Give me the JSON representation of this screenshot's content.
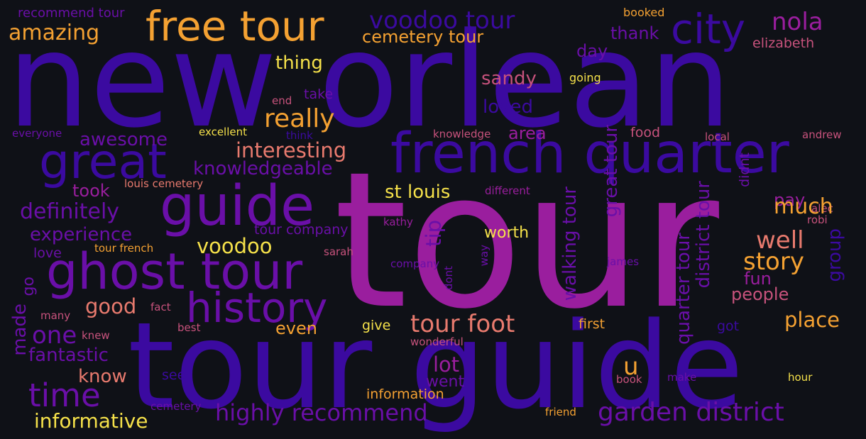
{
  "colors": {
    "background": "#0f1117",
    "indigo": "#3b0aa0",
    "purple": "#6a0fa8",
    "magenta": "#9a1e9e",
    "orange": "#f4a132",
    "pink": "#e87a6e",
    "rose": "#c7527c",
    "yellow": "#f5e14a"
  },
  "words": [
    {
      "text": "new orlean",
      "color": "#3b0aa0"
    },
    {
      "text": "tour",
      "color": "#9a1e9e"
    },
    {
      "text": "tour guide",
      "color": "#3b0aa0"
    },
    {
      "text": "free tour",
      "color": "#f4a132"
    },
    {
      "text": "guide",
      "color": "#6a0fa8"
    },
    {
      "text": "french quarter",
      "color": "#3b0aa0"
    },
    {
      "text": "ghost tour",
      "color": "#6a0fa8"
    },
    {
      "text": "history",
      "color": "#6a0fa8"
    },
    {
      "text": "great",
      "color": "#3b0aa0"
    },
    {
      "text": "city",
      "color": "#3b0aa0"
    },
    {
      "text": "voodoo tour",
      "color": "#3b0aa0"
    },
    {
      "text": "nola",
      "color": "#9a1e9e"
    },
    {
      "text": "amazing",
      "color": "#f4a132"
    },
    {
      "text": "cemetery tour",
      "color": "#f4a132"
    },
    {
      "text": "thank",
      "color": "#6a0fa8"
    },
    {
      "text": "elizabeth",
      "color": "#c7527c"
    },
    {
      "text": "recommend tour",
      "color": "#6a0fa8"
    },
    {
      "text": "booked",
      "color": "#f4a132"
    },
    {
      "text": "thing",
      "color": "#f5e14a"
    },
    {
      "text": "day",
      "color": "#6a0fa8"
    },
    {
      "text": "going",
      "color": "#f5e14a"
    },
    {
      "text": "sandy",
      "color": "#c7527c"
    },
    {
      "text": "really",
      "color": "#f4a132"
    },
    {
      "text": "loved",
      "color": "#3b0aa0"
    },
    {
      "text": "end",
      "color": "#c7527c"
    },
    {
      "text": "take",
      "color": "#6a0fa8"
    },
    {
      "text": "everyone",
      "color": "#6a0fa8"
    },
    {
      "text": "excellent",
      "color": "#f5e14a"
    },
    {
      "text": "think",
      "color": "#3b0aa0"
    },
    {
      "text": "knowledge",
      "color": "#c7527c"
    },
    {
      "text": "area",
      "color": "#9a1e9e"
    },
    {
      "text": "food",
      "color": "#c7527c"
    },
    {
      "text": "local",
      "color": "#c7527c"
    },
    {
      "text": "andrew",
      "color": "#c7527c"
    },
    {
      "text": "awesome",
      "color": "#6a0fa8"
    },
    {
      "text": "interesting",
      "color": "#e87a6e"
    },
    {
      "text": "knowledgeable",
      "color": "#6a0fa8"
    },
    {
      "text": "louis cemetery",
      "color": "#e87a6e"
    },
    {
      "text": "took",
      "color": "#9a1e9e"
    },
    {
      "text": "st louis",
      "color": "#f5e14a"
    },
    {
      "text": "different",
      "color": "#9a1e9e"
    },
    {
      "text": "pay",
      "color": "#9a1e9e"
    },
    {
      "text": "alec",
      "color": "#c7527c"
    },
    {
      "text": "definitely",
      "color": "#6a0fa8"
    },
    {
      "text": "much",
      "color": "#f4a132"
    },
    {
      "text": "robi",
      "color": "#c7527c"
    },
    {
      "text": "experience",
      "color": "#6a0fa8"
    },
    {
      "text": "tour company",
      "color": "#6a0fa8"
    },
    {
      "text": "kathy",
      "color": "#9a1e9e"
    },
    {
      "text": "worth",
      "color": "#f5e14a"
    },
    {
      "text": "well",
      "color": "#e87a6e"
    },
    {
      "text": "voodoo",
      "color": "#f5e14a"
    },
    {
      "text": "love",
      "color": "#6a0fa8"
    },
    {
      "text": "tour french",
      "color": "#f4a132"
    },
    {
      "text": "sarah",
      "color": "#c7527c"
    },
    {
      "text": "company",
      "color": "#6a0fa8"
    },
    {
      "text": "james",
      "color": "#6a0fa8"
    },
    {
      "text": "story",
      "color": "#f4a132"
    },
    {
      "text": "fun",
      "color": "#9a1e9e"
    },
    {
      "text": "people",
      "color": "#c7527c"
    },
    {
      "text": "go",
      "color": "#6a0fa8"
    },
    {
      "text": "good",
      "color": "#e87a6e"
    },
    {
      "text": "fact",
      "color": "#c7527c"
    },
    {
      "text": "many",
      "color": "#c7527c"
    },
    {
      "text": "one",
      "color": "#6a0fa8"
    },
    {
      "text": "best",
      "color": "#c7527c"
    },
    {
      "text": "even",
      "color": "#f4a132"
    },
    {
      "text": "give",
      "color": "#f5e14a"
    },
    {
      "text": "tour foot",
      "color": "#e87a6e"
    },
    {
      "text": "first",
      "color": "#f4a132"
    },
    {
      "text": "place",
      "color": "#f4a132"
    },
    {
      "text": "got",
      "color": "#3b0aa0"
    },
    {
      "text": "knew",
      "color": "#c7527c"
    },
    {
      "text": "wonderful",
      "color": "#c7527c"
    },
    {
      "text": "fantastic",
      "color": "#6a0fa8"
    },
    {
      "text": "lot",
      "color": "#9a1e9e"
    },
    {
      "text": "u",
      "color": "#f4a132"
    },
    {
      "text": "know",
      "color": "#e87a6e"
    },
    {
      "text": "see",
      "color": "#3b0aa0"
    },
    {
      "text": "went",
      "color": "#6a0fa8"
    },
    {
      "text": "make",
      "color": "#6a0fa8"
    },
    {
      "text": "book",
      "color": "#c7527c"
    },
    {
      "text": "hour",
      "color": "#f5e14a"
    },
    {
      "text": "time",
      "color": "#6a0fa8"
    },
    {
      "text": "information",
      "color": "#f4a132"
    },
    {
      "text": "highly recommend",
      "color": "#6a0fa8"
    },
    {
      "text": "garden district",
      "color": "#6a0fa8"
    },
    {
      "text": "cemetery",
      "color": "#6a0fa8"
    },
    {
      "text": "friend",
      "color": "#f4a132"
    },
    {
      "text": "informative",
      "color": "#f5e14a"
    },
    {
      "text": "made",
      "color": "#6a0fa8"
    },
    {
      "text": "tip",
      "color": "#6a0fa8"
    },
    {
      "text": "walking tour",
      "color": "#6a0fa8"
    },
    {
      "text": "great tour",
      "color": "#6a0fa8"
    },
    {
      "text": "quarter tour",
      "color": "#6a0fa8"
    },
    {
      "text": "district tour",
      "color": "#6a0fa8"
    },
    {
      "text": "didnt",
      "color": "#6a0fa8"
    },
    {
      "text": "group",
      "color": "#3b0aa0"
    },
    {
      "text": "way",
      "color": "#6a0fa8"
    },
    {
      "text": "dont",
      "color": "#6a0fa8"
    }
  ]
}
